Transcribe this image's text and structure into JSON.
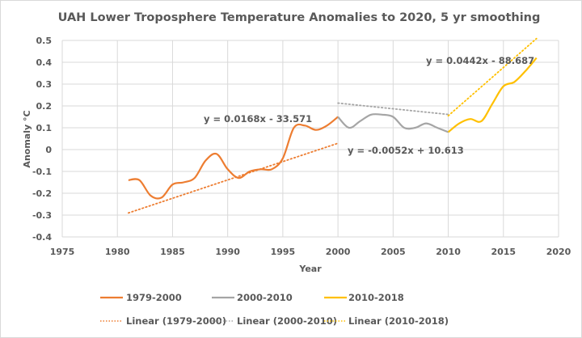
{
  "chart_data": {
    "type": "line",
    "title": "UAH Lower Troposphere Temperature Anomalies to 2020, 5 yr smoothing",
    "xlabel": "Year",
    "ylabel": "Anomaly °C",
    "xlim": [
      1975,
      2020
    ],
    "ylim": [
      -0.4,
      0.5
    ],
    "x_ticks": [
      1975,
      1980,
      1985,
      1990,
      1995,
      2000,
      2005,
      2010,
      2015,
      2020
    ],
    "x_tick_labels": [
      "1975",
      "1980",
      "1985",
      "1990",
      "1995",
      "2000",
      "2005",
      "2010",
      "2015",
      "2020"
    ],
    "y_ticks": [
      0.5,
      0.4,
      0.3,
      0.2,
      0.1,
      0,
      -0.1,
      -0.2,
      -0.3,
      -0.4
    ],
    "y_tick_labels": [
      "0.5",
      "0.4",
      "0.3",
      "0.2",
      "0.1",
      "0",
      "-0.1",
      "-0.2",
      "-0.3",
      "-0.4"
    ],
    "grid": true,
    "legend_position": "bottom",
    "series": [
      {
        "name": "1979-2000",
        "color": "#ED7D31",
        "x": [
          1981,
          1982,
          1983,
          1984,
          1985,
          1986,
          1987,
          1988,
          1989,
          1990,
          1991,
          1992,
          1993,
          1994,
          1995,
          1996,
          1997,
          1998,
          1999,
          2000
        ],
        "values": [
          -0.14,
          -0.14,
          -0.21,
          -0.22,
          -0.16,
          -0.15,
          -0.13,
          -0.05,
          -0.02,
          -0.09,
          -0.13,
          -0.1,
          -0.09,
          -0.09,
          -0.04,
          0.1,
          0.11,
          0.09,
          0.11,
          0.15
        ]
      },
      {
        "name": "2000-2010",
        "color": "#A5A5A5",
        "x": [
          2000,
          2001,
          2002,
          2003,
          2004,
          2005,
          2006,
          2007,
          2008,
          2009,
          2010
        ],
        "values": [
          0.15,
          0.1,
          0.13,
          0.16,
          0.16,
          0.15,
          0.1,
          0.1,
          0.12,
          0.1,
          0.08
        ]
      },
      {
        "name": "2010-2018",
        "color": "#FFC000",
        "x": [
          2010,
          2011,
          2012,
          2013,
          2014,
          2015,
          2016,
          2017,
          2018
        ],
        "values": [
          0.08,
          0.12,
          0.14,
          0.13,
          0.21,
          0.29,
          0.31,
          0.36,
          0.42
        ]
      }
    ],
    "trendlines": [
      {
        "name": "Linear (1979-2000)",
        "color": "#ED7D31",
        "slope": 0.0168,
        "intercept": -33.571,
        "x_range": [
          1981,
          2000
        ],
        "equation": "y = 0.0168x - 33.571"
      },
      {
        "name": "Linear (2000-2010)",
        "color": "#A5A5A5",
        "slope": -0.0052,
        "intercept": 10.613,
        "x_range": [
          2000,
          2010
        ],
        "equation": "y = -0.0052x + 10.613"
      },
      {
        "name": "Linear (2010-2018)",
        "color": "#FFC000",
        "slope": 0.0442,
        "intercept": -88.687,
        "x_range": [
          2010,
          2018
        ],
        "equation": "y = 0.0442x - 88.687"
      }
    ],
    "legend": [
      {
        "label": "1979-2000",
        "style": "solid",
        "color": "#ED7D31"
      },
      {
        "label": "2000-2010",
        "style": "solid",
        "color": "#A5A5A5"
      },
      {
        "label": "2010-2018",
        "style": "solid",
        "color": "#FFC000"
      },
      {
        "label": "Linear (1979-2000)",
        "style": "dotted",
        "color": "#ED7D31"
      },
      {
        "label": "Linear (2000-2010)",
        "style": "dotted",
        "color": "#A5A5A5"
      },
      {
        "label": "Linear (2010-2018)",
        "style": "dotted",
        "color": "#FFC000"
      }
    ]
  }
}
